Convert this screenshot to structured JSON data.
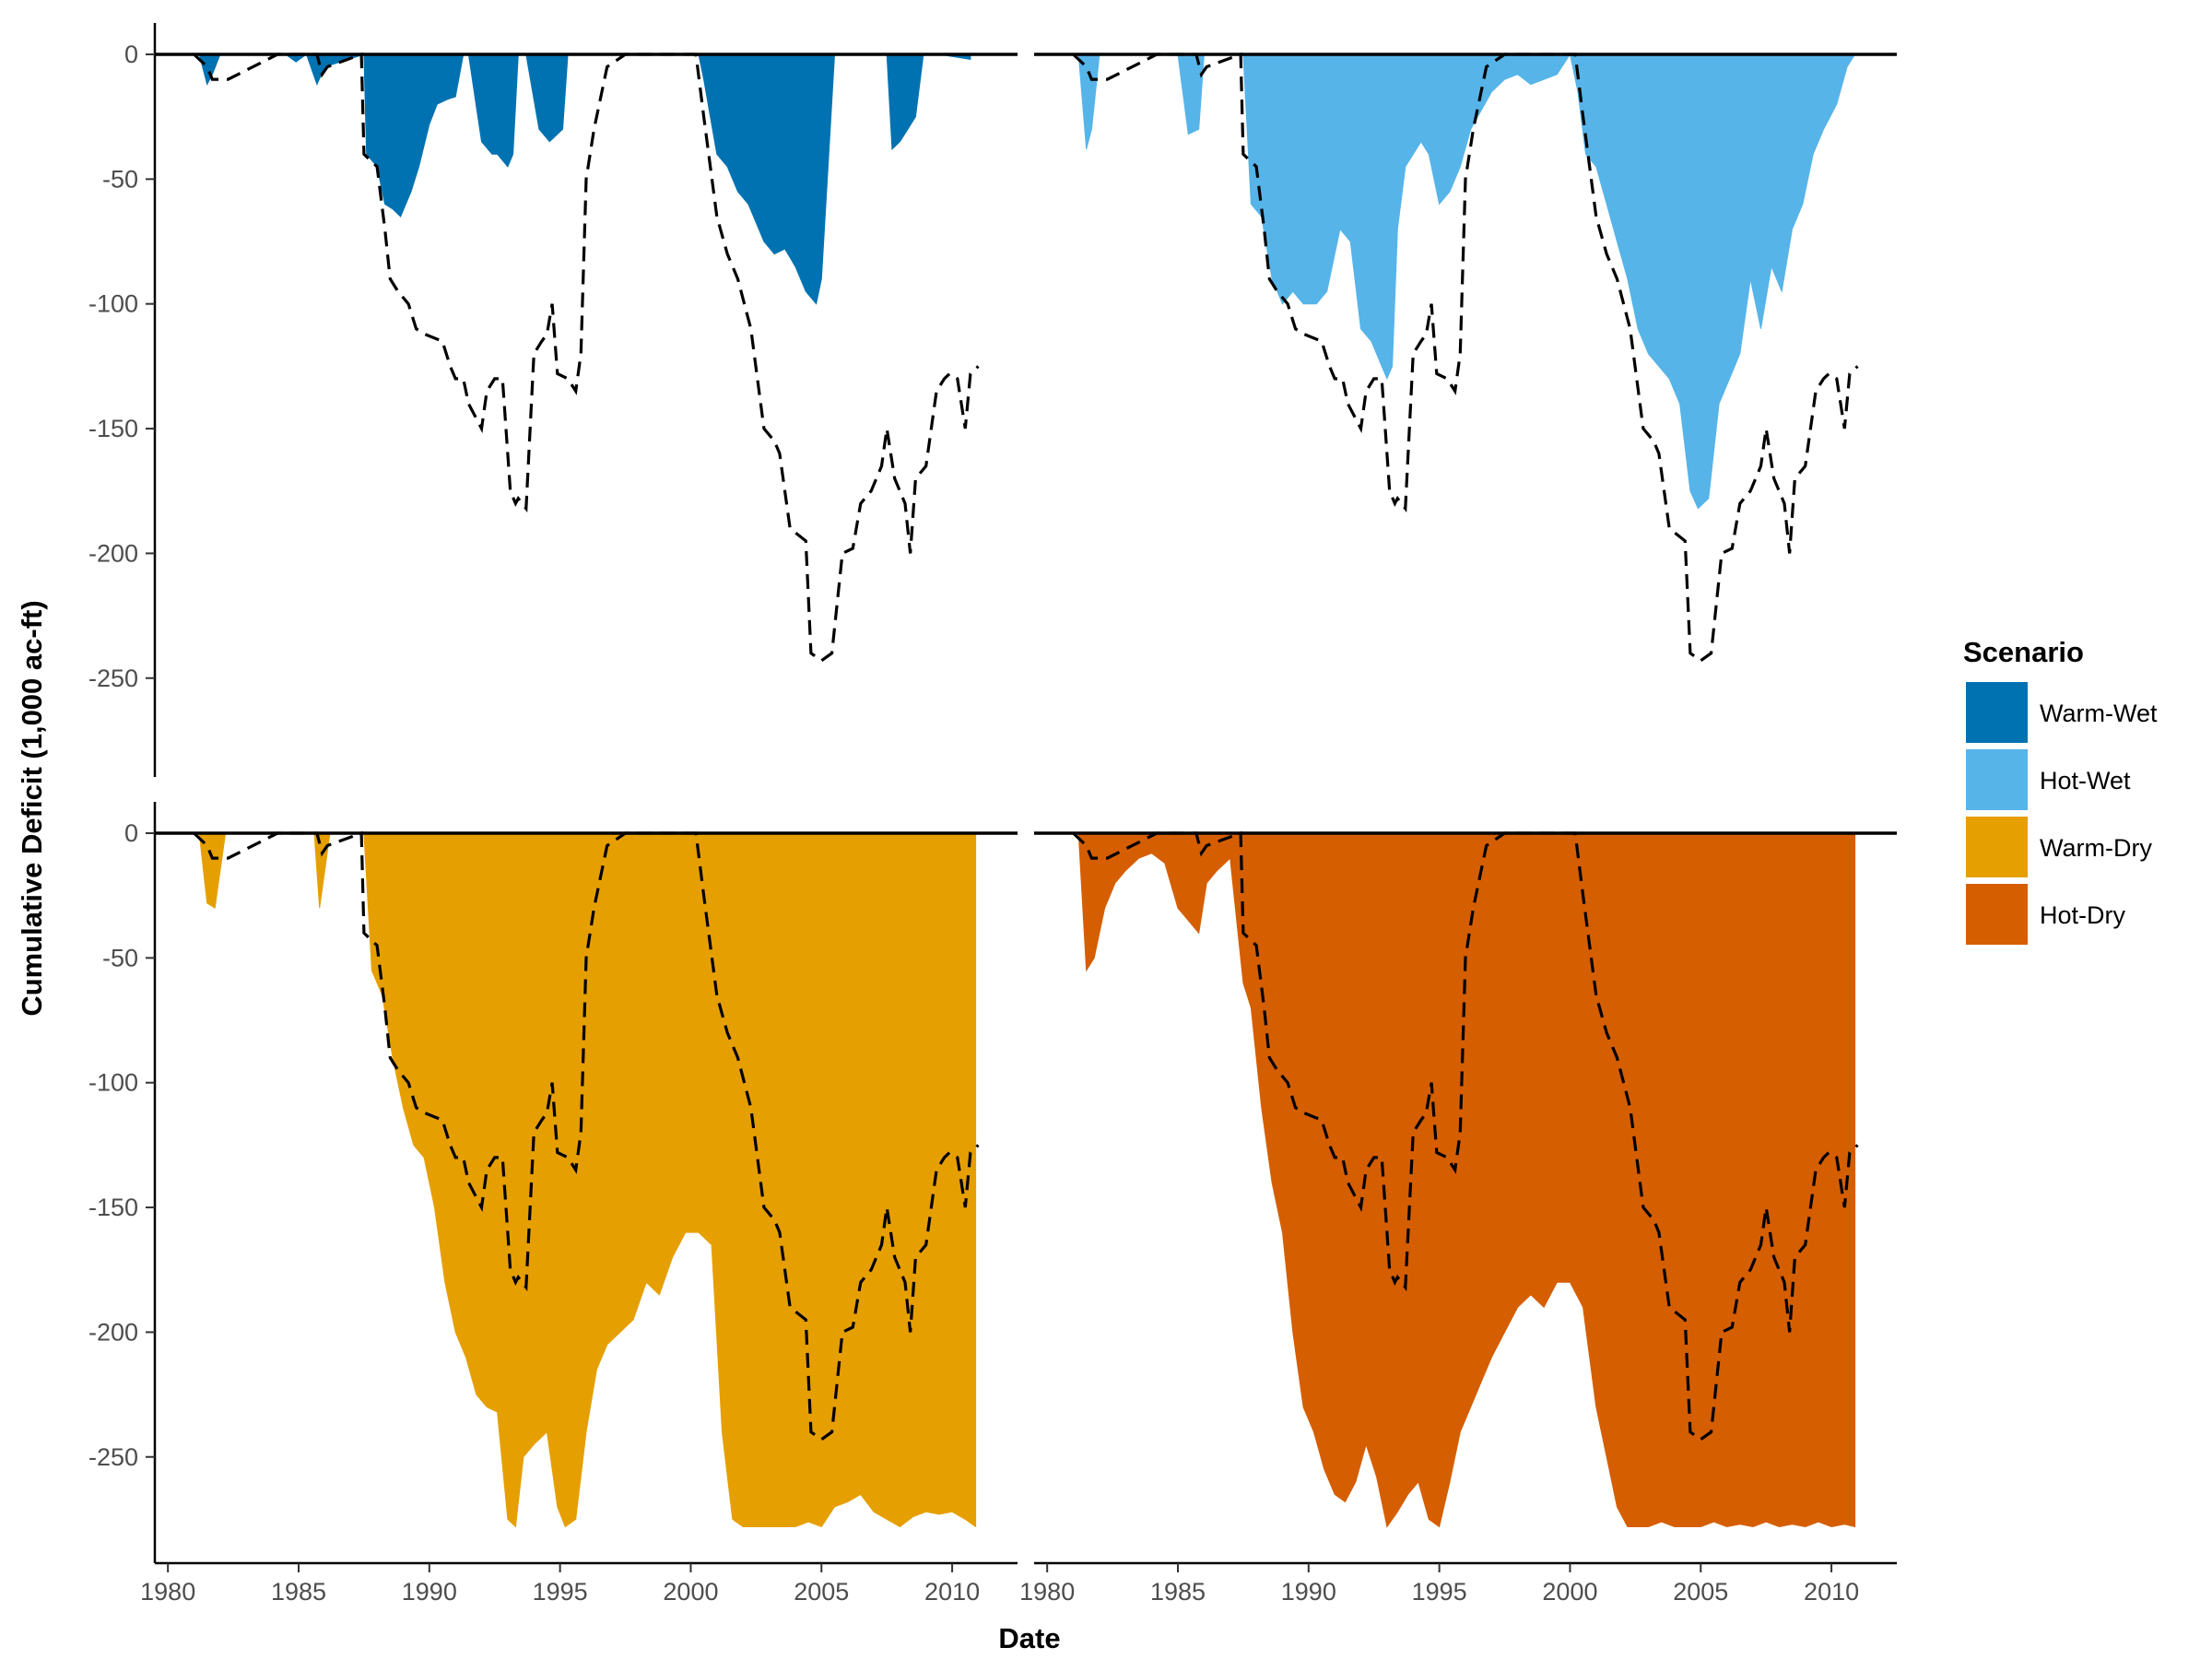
{
  "chart_data": {
    "type": "area",
    "title": "",
    "xlabel": "Date",
    "ylabel": "Cumulative Deficit (1,000 ac-ft)",
    "xlim": [
      1979.5,
      2012.5
    ],
    "ylim": [
      -280,
      0
    ],
    "x_ticks": [
      1980,
      1985,
      1990,
      1995,
      2000,
      2005,
      2010
    ],
    "y_ticks": [
      0,
      -50,
      -100,
      -150,
      -200,
      -250
    ],
    "x_tick_labels": [
      "1980",
      "1985",
      "1990",
      "1995",
      "2000",
      "2005",
      "2010"
    ],
    "y_tick_labels": [
      "0",
      "-50",
      "-100",
      "-150",
      "-200",
      "-250"
    ],
    "grid": false,
    "layout": "2x2 facets",
    "legend": {
      "title": "Scenario",
      "position": "right",
      "entries": [
        {
          "label": "Warm-Wet",
          "color": "#0072B2"
        },
        {
          "label": "Hot-Wet",
          "color": "#56B4E9"
        },
        {
          "label": "Warm-Dry",
          "color": "#E69F00"
        },
        {
          "label": "Hot-Dry",
          "color": "#D55E00"
        }
      ]
    },
    "baseline": {
      "style": "dashed",
      "color": "#000000",
      "x": [
        1981.0,
        1981.5,
        1981.7,
        1982.0,
        1982.3,
        1984.2,
        1985.7,
        1985.9,
        1986.1,
        1987.4,
        1987.5,
        1988.0,
        1988.3,
        1988.5,
        1988.8,
        1989.2,
        1989.5,
        1989.8,
        1990.5,
        1990.8,
        1991.0,
        1991.3,
        1991.5,
        1992.0,
        1992.2,
        1992.5,
        1992.8,
        1993.1,
        1993.3,
        1993.4,
        1993.7,
        1994.0,
        1994.3,
        1994.5,
        1994.7,
        1994.9,
        1995.3,
        1995.6,
        1995.8,
        1996.0,
        1996.3,
        1996.8,
        1997.5,
        2000.2,
        2000.5,
        2001.0,
        2001.4,
        2001.8,
        2002.3,
        2002.8,
        2003.2,
        2003.4,
        2003.8,
        2004.4,
        2004.6,
        2005.0,
        2005.4,
        2005.8,
        2006.2,
        2006.5,
        2006.9,
        2007.3,
        2007.5,
        2007.8,
        2008.2,
        2008.4,
        2008.6,
        2009.0,
        2009.4,
        2009.7,
        2009.9,
        2010.2,
        2010.5,
        2010.7,
        2011.0
      ],
      "y": [
        0,
        -5,
        -10,
        -10,
        -10,
        0,
        0,
        -8,
        -5,
        0,
        -40,
        -45,
        -70,
        -90,
        -95,
        -100,
        -110,
        -112,
        -115,
        -125,
        -130,
        -130,
        -140,
        -150,
        -135,
        -130,
        -130,
        -175,
        -180,
        -178,
        -182,
        -120,
        -115,
        -112,
        -100,
        -128,
        -130,
        -135,
        -120,
        -50,
        -30,
        -5,
        0,
        0,
        -25,
        -65,
        -80,
        -90,
        -110,
        -150,
        -155,
        -160,
        -190,
        -195,
        -240,
        -243,
        -240,
        -200,
        -198,
        -180,
        -175,
        -165,
        -150,
        -170,
        -180,
        -200,
        -170,
        -165,
        -135,
        -130,
        -128,
        -130,
        -150,
        -128,
        -125
      ]
    },
    "panels": [
      {
        "name": "Warm-Wet",
        "color": "#0072B2",
        "x": [
          1981.2,
          1981.5,
          1981.7,
          1982.0,
          1984.5,
          1984.9,
          1985.3,
          1985.7,
          1986.0,
          1987.5,
          1987.6,
          1988.0,
          1988.3,
          1988.6,
          1988.9,
          1989.3,
          1989.6,
          1990.0,
          1990.3,
          1990.7,
          1991.0,
          1991.3,
          1991.5,
          1992.0,
          1992.4,
          1992.6,
          1993.0,
          1993.2,
          1993.4,
          1993.7,
          1994.2,
          1994.6,
          1994.8,
          1995.1,
          1995.3,
          1995.5,
          1995.8,
          2000.3,
          2000.5,
          2001.0,
          2001.4,
          2001.8,
          2002.2,
          2002.8,
          2003.2,
          2003.6,
          2004.0,
          2004.4,
          2004.8,
          2005.0,
          2005.5,
          2007.5,
          2007.7,
          2008.0,
          2008.3,
          2008.6,
          2008.9,
          2009.5,
          2010.7
        ],
        "y": [
          0,
          -12,
          -8,
          0,
          0,
          -3,
          0,
          -12,
          -5,
          0,
          -40,
          -45,
          -60,
          -62,
          -65,
          -55,
          -45,
          -28,
          -20,
          -18,
          -17,
          0,
          0,
          -35,
          -40,
          -40,
          -45,
          -40,
          0,
          0,
          -30,
          -35,
          -33,
          -30,
          0,
          0,
          0,
          0,
          -10,
          -40,
          -45,
          -55,
          -60,
          -75,
          -80,
          -78,
          -85,
          -95,
          -100,
          -90,
          0,
          0,
          -38,
          -35,
          -30,
          -25,
          0,
          0,
          -2
        ]
      },
      {
        "name": "Hot-Wet",
        "color": "#56B4E9",
        "x": [
          1981.2,
          1981.5,
          1981.7,
          1982.0,
          1985.0,
          1985.4,
          1985.8,
          1986.0,
          1987.5,
          1987.8,
          1988.2,
          1988.6,
          1989.0,
          1989.4,
          1989.8,
          1990.3,
          1990.7,
          1991.2,
          1991.6,
          1992.0,
          1992.4,
          1992.8,
          1993.0,
          1993.2,
          1993.4,
          1993.7,
          1994.0,
          1994.3,
          1994.6,
          1995.0,
          1995.4,
          1995.8,
          1996.2,
          1997.0,
          1997.5,
          1998.0,
          1998.5,
          1999.0,
          1999.5,
          2000.0,
          2000.3,
          2000.6,
          2001.0,
          2001.4,
          2001.8,
          2002.2,
          2002.6,
          2003.0,
          2003.4,
          2003.8,
          2004.2,
          2004.6,
          2004.9,
          2005.3,
          2005.7,
          2006.1,
          2006.5,
          2006.9,
          2007.3,
          2007.7,
          2008.1,
          2008.5,
          2008.9,
          2009.3,
          2009.7,
          2010.2,
          2010.6,
          2010.9
        ],
        "y": [
          0,
          -38,
          -30,
          0,
          0,
          -32,
          -30,
          0,
          0,
          -60,
          -65,
          -90,
          -100,
          -95,
          -100,
          -100,
          -95,
          -70,
          -75,
          -110,
          -115,
          -125,
          -130,
          -125,
          -70,
          -45,
          -40,
          -35,
          -40,
          -60,
          -55,
          -45,
          -30,
          -15,
          -10,
          -8,
          -12,
          -10,
          -8,
          0,
          -15,
          -40,
          -45,
          -60,
          -75,
          -90,
          -110,
          -120,
          -125,
          -130,
          -140,
          -175,
          -182,
          -178,
          -140,
          -130,
          -120,
          -90,
          -110,
          -85,
          -95,
          -70,
          -60,
          -40,
          -30,
          -20,
          -5,
          0
        ]
      },
      {
        "name": "Warm-Dry",
        "color": "#E69F00",
        "x": [
          1981.2,
          1981.5,
          1981.8,
          1982.2,
          1985.6,
          1985.8,
          1986.2,
          1987.5,
          1987.8,
          1988.2,
          1988.6,
          1989.0,
          1989.4,
          1989.8,
          1990.2,
          1990.6,
          1991.0,
          1991.4,
          1991.8,
          1992.2,
          1992.6,
          1993.0,
          1993.3,
          1993.6,
          1994.0,
          1994.5,
          1994.9,
          1995.2,
          1995.6,
          1996.0,
          1996.4,
          1996.8,
          1997.3,
          1997.8,
          1998.3,
          1998.8,
          1999.3,
          1999.8,
          2000.3,
          2000.8,
          2001.2,
          2001.6,
          2002.0,
          2002.5,
          2003.0,
          2003.5,
          2004.0,
          2004.5,
          2005.0,
          2005.5,
          2006.0,
          2006.5,
          2007.0,
          2007.5,
          2008.0,
          2008.5,
          2009.0,
          2009.5,
          2010.0,
          2010.5,
          2010.9
        ],
        "y": [
          0,
          -28,
          -30,
          0,
          0,
          -30,
          0,
          0,
          -55,
          -65,
          -90,
          -110,
          -125,
          -130,
          -150,
          -180,
          -200,
          -210,
          -225,
          -230,
          -232,
          -275,
          -278,
          -250,
          -245,
          -240,
          -270,
          -278,
          -275,
          -240,
          -215,
          -205,
          -200,
          -195,
          -180,
          -185,
          -170,
          -160,
          -160,
          -165,
          -240,
          -275,
          -278,
          -278,
          -278,
          -278,
          -278,
          -276,
          -278,
          -270,
          -268,
          -265,
          -272,
          -275,
          -278,
          -274,
          -272,
          -273,
          -272,
          -275,
          -278
        ]
      },
      {
        "name": "Hot-Dry",
        "color": "#D55E00",
        "x": [
          1981.2,
          1981.5,
          1981.8,
          1982.2,
          1982.6,
          1983.0,
          1983.5,
          1984.0,
          1984.5,
          1985.0,
          1985.4,
          1985.8,
          1986.1,
          1986.5,
          1987.0,
          1987.5,
          1987.8,
          1988.2,
          1988.6,
          1989.0,
          1989.4,
          1989.8,
          1990.2,
          1990.6,
          1991.0,
          1991.4,
          1991.8,
          1992.2,
          1992.6,
          1993.0,
          1993.4,
          1993.8,
          1994.2,
          1994.6,
          1995.0,
          1995.4,
          1995.8,
          1996.2,
          1996.6,
          1997.0,
          1997.5,
          1998.0,
          1998.5,
          1999.0,
          1999.5,
          2000.0,
          2000.5,
          2001.0,
          2001.4,
          2001.8,
          2002.2,
          2002.6,
          2003.0,
          2003.5,
          2004.0,
          2004.5,
          2005.0,
          2005.5,
          2006.0,
          2006.5,
          2007.0,
          2007.5,
          2008.0,
          2008.5,
          2009.0,
          2009.5,
          2010.0,
          2010.5,
          2010.9
        ],
        "y": [
          0,
          -55,
          -50,
          -30,
          -20,
          -15,
          -10,
          -8,
          -12,
          -30,
          -35,
          -40,
          -20,
          -15,
          -10,
          -60,
          -70,
          -110,
          -140,
          -160,
          -200,
          -230,
          -240,
          -255,
          -265,
          -268,
          -260,
          -245,
          -258,
          -278,
          -272,
          -265,
          -260,
          -275,
          -278,
          -260,
          -240,
          -230,
          -220,
          -210,
          -200,
          -190,
          -185,
          -190,
          -180,
          -180,
          -190,
          -230,
          -250,
          -270,
          -278,
          -278,
          -278,
          -276,
          -278,
          -278,
          -278,
          -276,
          -278,
          -277,
          -278,
          -276,
          -278,
          -277,
          -278,
          -276,
          -278,
          -277,
          -278
        ]
      }
    ]
  }
}
